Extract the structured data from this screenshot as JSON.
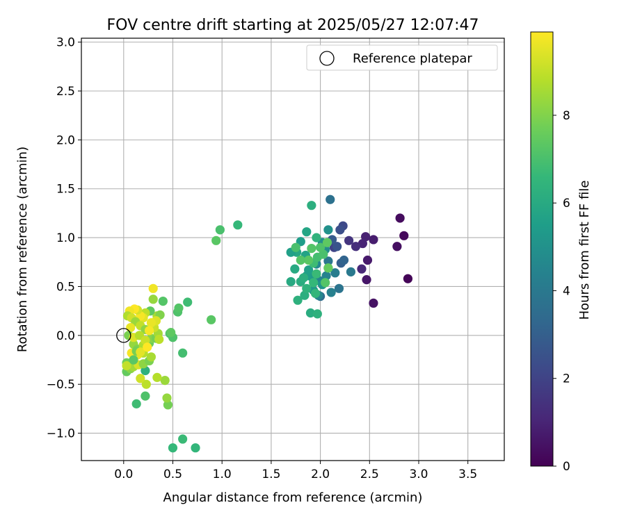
{
  "chart_data": {
    "type": "scatter",
    "title": "FOV centre drift starting at 2025/05/27 12:07:47",
    "xlabel": "Angular distance from reference (arcmin)",
    "ylabel": "Rotation from reference (arcmin)",
    "xlim": [
      -0.43,
      3.87
    ],
    "ylim": [
      -1.28,
      3.04
    ],
    "xticks": [
      0.0,
      0.5,
      1.0,
      1.5,
      2.0,
      2.5,
      3.0,
      3.5
    ],
    "xtick_labels": [
      "0.0",
      "0.5",
      "1.0",
      "1.5",
      "2.0",
      "2.5",
      "3.0",
      "3.5"
    ],
    "yticks": [
      -1.0,
      -0.5,
      0.0,
      0.5,
      1.0,
      1.5,
      2.0,
      2.5,
      3.0
    ],
    "ytick_labels": [
      "−1.0",
      "−0.5",
      "0.0",
      "0.5",
      "1.0",
      "1.5",
      "2.0",
      "2.5",
      "3.0"
    ],
    "grid": true,
    "legend": {
      "position": "top-right",
      "entries": [
        {
          "label": "Reference platepar",
          "marker": "open-circle"
        }
      ]
    },
    "reference_point": {
      "x": 0.0,
      "y": 0.0
    },
    "colorbar": {
      "label": "Hours from first FF file",
      "range": [
        0,
        9.9
      ],
      "ticks": [
        0,
        2,
        4,
        6,
        8
      ],
      "tick_labels": [
        "0",
        "2",
        "4",
        "6",
        "8"
      ],
      "colormap": "viridis",
      "colors": [
        "#440154",
        "#482878",
        "#3e4989",
        "#31688e",
        "#26828e",
        "#1f9e89",
        "#35b779",
        "#6ece58",
        "#b5de2b",
        "#fde725"
      ]
    },
    "points": [
      {
        "x": 2.89,
        "y": 0.58,
        "c": 0.1
      },
      {
        "x": 2.81,
        "y": 1.2,
        "c": 0.3
      },
      {
        "x": 2.85,
        "y": 1.02,
        "c": 0.2
      },
      {
        "x": 2.78,
        "y": 0.91,
        "c": 0.4
      },
      {
        "x": 2.54,
        "y": 0.33,
        "c": 0.5
      },
      {
        "x": 2.47,
        "y": 0.57,
        "c": 0.6
      },
      {
        "x": 2.48,
        "y": 0.77,
        "c": 0.7
      },
      {
        "x": 2.54,
        "y": 0.98,
        "c": 0.8
      },
      {
        "x": 2.46,
        "y": 1.01,
        "c": 0.9
      },
      {
        "x": 2.43,
        "y": 0.94,
        "c": 1.0
      },
      {
        "x": 2.42,
        "y": 0.68,
        "c": 1.1
      },
      {
        "x": 2.36,
        "y": 0.91,
        "c": 1.3
      },
      {
        "x": 2.29,
        "y": 0.97,
        "c": 1.5
      },
      {
        "x": 2.23,
        "y": 1.12,
        "c": 2.2
      },
      {
        "x": 2.2,
        "y": 1.08,
        "c": 2.4
      },
      {
        "x": 2.14,
        "y": 0.9,
        "c": 2.0
      },
      {
        "x": 2.17,
        "y": 0.91,
        "c": 2.6
      },
      {
        "x": 2.12,
        "y": 0.98,
        "c": 2.8
      },
      {
        "x": 2.21,
        "y": 0.74,
        "c": 3.0
      },
      {
        "x": 2.24,
        "y": 0.77,
        "c": 3.2
      },
      {
        "x": 2.1,
        "y": 1.39,
        "c": 3.7
      },
      {
        "x": 2.31,
        "y": 0.65,
        "c": 4.0
      },
      {
        "x": 2.19,
        "y": 0.48,
        "c": 3.8
      },
      {
        "x": 2.08,
        "y": 0.76,
        "c": 3.9
      },
      {
        "x": 2.15,
        "y": 0.64,
        "c": 4.2
      },
      {
        "x": 2.11,
        "y": 0.44,
        "c": 4.3
      },
      {
        "x": 2.06,
        "y": 0.61,
        "c": 4.4
      },
      {
        "x": 2.0,
        "y": 0.4,
        "c": 3.5
      },
      {
        "x": 1.98,
        "y": 0.41,
        "c": 4.6
      },
      {
        "x": 1.99,
        "y": 0.56,
        "c": 4.5
      },
      {
        "x": 1.96,
        "y": 0.73,
        "c": 4.7
      },
      {
        "x": 2.05,
        "y": 0.88,
        "c": 4.8
      },
      {
        "x": 2.02,
        "y": 0.95,
        "c": 4.9
      },
      {
        "x": 2.08,
        "y": 1.08,
        "c": 5.0
      },
      {
        "x": 2.08,
        "y": 0.69,
        "c": 5.1
      },
      {
        "x": 2.02,
        "y": 0.52,
        "c": 5.2
      },
      {
        "x": 1.93,
        "y": 0.46,
        "c": 5.3
      },
      {
        "x": 1.91,
        "y": 0.6,
        "c": 5.4
      },
      {
        "x": 1.86,
        "y": 0.61,
        "c": 5.5
      },
      {
        "x": 1.88,
        "y": 0.67,
        "c": 5.6
      },
      {
        "x": 1.85,
        "y": 0.82,
        "c": 5.7
      },
      {
        "x": 1.86,
        "y": 1.06,
        "c": 5.8
      },
      {
        "x": 1.8,
        "y": 0.96,
        "c": 5.5
      },
      {
        "x": 1.76,
        "y": 0.85,
        "c": 5.9
      },
      {
        "x": 1.7,
        "y": 0.85,
        "c": 5.6
      },
      {
        "x": 1.74,
        "y": 0.68,
        "c": 6.0
      },
      {
        "x": 1.8,
        "y": 0.55,
        "c": 6.1
      },
      {
        "x": 1.83,
        "y": 0.59,
        "c": 6.2
      },
      {
        "x": 1.7,
        "y": 0.55,
        "c": 6.0
      },
      {
        "x": 1.77,
        "y": 0.36,
        "c": 6.3
      },
      {
        "x": 1.84,
        "y": 0.41,
        "c": 6.2
      },
      {
        "x": 1.86,
        "y": 0.48,
        "c": 6.4
      },
      {
        "x": 1.9,
        "y": 0.23,
        "c": 6.1
      },
      {
        "x": 1.97,
        "y": 0.22,
        "c": 6.3
      },
      {
        "x": 1.95,
        "y": 0.43,
        "c": 6.5
      },
      {
        "x": 1.93,
        "y": 0.54,
        "c": 6.6
      },
      {
        "x": 1.96,
        "y": 0.63,
        "c": 6.7
      },
      {
        "x": 1.93,
        "y": 0.74,
        "c": 6.8
      },
      {
        "x": 1.97,
        "y": 0.8,
        "c": 6.9
      },
      {
        "x": 2.03,
        "y": 0.83,
        "c": 7.0
      },
      {
        "x": 2.0,
        "y": 0.9,
        "c": 7.1
      },
      {
        "x": 1.96,
        "y": 1.0,
        "c": 6.4
      },
      {
        "x": 1.91,
        "y": 0.89,
        "c": 7.2
      },
      {
        "x": 1.88,
        "y": 0.77,
        "c": 7.3
      },
      {
        "x": 1.8,
        "y": 0.77,
        "c": 7.2
      },
      {
        "x": 1.75,
        "y": 0.9,
        "c": 7.0
      },
      {
        "x": 2.07,
        "y": 0.95,
        "c": 7.4
      },
      {
        "x": 2.08,
        "y": 0.69,
        "c": 7.5
      },
      {
        "x": 2.05,
        "y": 0.54,
        "c": 7.2
      },
      {
        "x": 1.91,
        "y": 1.33,
        "c": 6.2
      },
      {
        "x": 1.16,
        "y": 1.13,
        "c": 6.6
      },
      {
        "x": 0.98,
        "y": 1.08,
        "c": 7.0
      },
      {
        "x": 0.94,
        "y": 0.97,
        "c": 7.3
      },
      {
        "x": 0.89,
        "y": 0.16,
        "c": 7.3
      },
      {
        "x": 0.65,
        "y": 0.34,
        "c": 6.8
      },
      {
        "x": 0.55,
        "y": 0.24,
        "c": 7.1
      },
      {
        "x": 0.56,
        "y": 0.28,
        "c": 7.2
      },
      {
        "x": 0.6,
        "y": -0.18,
        "c": 6.9
      },
      {
        "x": 0.73,
        "y": -1.15,
        "c": 6.5
      },
      {
        "x": 0.6,
        "y": -1.06,
        "c": 6.7
      },
      {
        "x": 0.5,
        "y": -1.15,
        "c": 6.6
      },
      {
        "x": 0.47,
        "y": 0.02,
        "c": 7.0
      },
      {
        "x": 0.5,
        "y": -0.02,
        "c": 7.1
      },
      {
        "x": 0.48,
        "y": 0.03,
        "c": 7.4
      },
      {
        "x": 0.45,
        "y": -0.71,
        "c": 7.8
      },
      {
        "x": 0.44,
        "y": -0.64,
        "c": 8.3
      },
      {
        "x": 0.13,
        "y": -0.7,
        "c": 6.8
      },
      {
        "x": 0.22,
        "y": -0.62,
        "c": 7.1
      },
      {
        "x": 0.42,
        "y": -0.46,
        "c": 8.4
      },
      {
        "x": 0.34,
        "y": -0.43,
        "c": 8.8
      },
      {
        "x": 0.22,
        "y": -0.36,
        "c": 6.3
      },
      {
        "x": 0.23,
        "y": -0.5,
        "c": 8.9
      },
      {
        "x": 0.17,
        "y": -0.44,
        "c": 9.2
      },
      {
        "x": 0.03,
        "y": -0.37,
        "c": 7.5
      },
      {
        "x": 0.03,
        "y": -0.28,
        "c": 7.7
      },
      {
        "x": 0.07,
        "y": -0.34,
        "c": 8.1
      },
      {
        "x": 0.1,
        "y": -0.32,
        "c": 8.5
      },
      {
        "x": 0.15,
        "y": -0.3,
        "c": 9.3
      },
      {
        "x": 0.2,
        "y": -0.29,
        "c": 8.2
      },
      {
        "x": 0.26,
        "y": -0.26,
        "c": 7.9
      },
      {
        "x": 0.28,
        "y": -0.22,
        "c": 8.6
      },
      {
        "x": 0.2,
        "y": -0.18,
        "c": 8.8
      },
      {
        "x": 0.14,
        "y": -0.2,
        "c": 9.6
      },
      {
        "x": 0.08,
        "y": -0.18,
        "c": 9.8
      },
      {
        "x": 0.03,
        "y": -0.31,
        "c": 9.0
      },
      {
        "x": 0.1,
        "y": -0.09,
        "c": 8.3
      },
      {
        "x": 0.14,
        "y": -0.14,
        "c": 8.0
      },
      {
        "x": 0.2,
        "y": -0.1,
        "c": 8.7
      },
      {
        "x": 0.26,
        "y": -0.08,
        "c": 7.6
      },
      {
        "x": 0.28,
        "y": -0.03,
        "c": 8.1
      },
      {
        "x": 0.33,
        "y": -0.03,
        "c": 7.8
      },
      {
        "x": 0.35,
        "y": 0.02,
        "c": 8.5
      },
      {
        "x": 0.36,
        "y": -0.04,
        "c": 8.9
      },
      {
        "x": 0.31,
        "y": 0.08,
        "c": 9.1
      },
      {
        "x": 0.34,
        "y": 0.2,
        "c": 8.6
      },
      {
        "x": 0.37,
        "y": 0.21,
        "c": 8.0
      },
      {
        "x": 0.33,
        "y": 0.15,
        "c": 9.4
      },
      {
        "x": 0.28,
        "y": 0.13,
        "c": 9.6
      },
      {
        "x": 0.27,
        "y": 0.25,
        "c": 7.4
      },
      {
        "x": 0.3,
        "y": 0.37,
        "c": 8.3
      },
      {
        "x": 0.4,
        "y": 0.35,
        "c": 7.2
      },
      {
        "x": 0.3,
        "y": 0.48,
        "c": 9.7
      },
      {
        "x": 0.22,
        "y": 0.23,
        "c": 8.9
      },
      {
        "x": 0.2,
        "y": 0.18,
        "c": 9.5
      },
      {
        "x": 0.17,
        "y": 0.2,
        "c": 9.8
      },
      {
        "x": 0.14,
        "y": 0.26,
        "c": 9.3
      },
      {
        "x": 0.11,
        "y": 0.27,
        "c": 9.9
      },
      {
        "x": 0.06,
        "y": 0.25,
        "c": 9.7
      },
      {
        "x": 0.04,
        "y": 0.2,
        "c": 8.7
      },
      {
        "x": 0.08,
        "y": 0.18,
        "c": 9.2
      },
      {
        "x": 0.12,
        "y": 0.14,
        "c": 8.4
      },
      {
        "x": 0.17,
        "y": 0.1,
        "c": 9.0
      },
      {
        "x": 0.22,
        "y": 0.06,
        "c": 8.2
      },
      {
        "x": 0.07,
        "y": 0.08,
        "c": 9.6
      },
      {
        "x": 0.05,
        "y": 0.0,
        "c": 7.9
      },
      {
        "x": 0.1,
        "y": -0.02,
        "c": 9.4
      },
      {
        "x": 0.16,
        "y": 0.0,
        "c": 8.8
      },
      {
        "x": 0.22,
        "y": -0.05,
        "c": 9.1
      },
      {
        "x": 0.1,
        "y": -0.25,
        "c": 7.3
      },
      {
        "x": 0.13,
        "y": -0.16,
        "c": 7.8
      },
      {
        "x": 0.17,
        "y": -0.17,
        "c": 9.5
      },
      {
        "x": 0.24,
        "y": -0.12,
        "c": 9.9
      },
      {
        "x": 0.26,
        "y": 0.05,
        "c": 9.8
      }
    ]
  }
}
